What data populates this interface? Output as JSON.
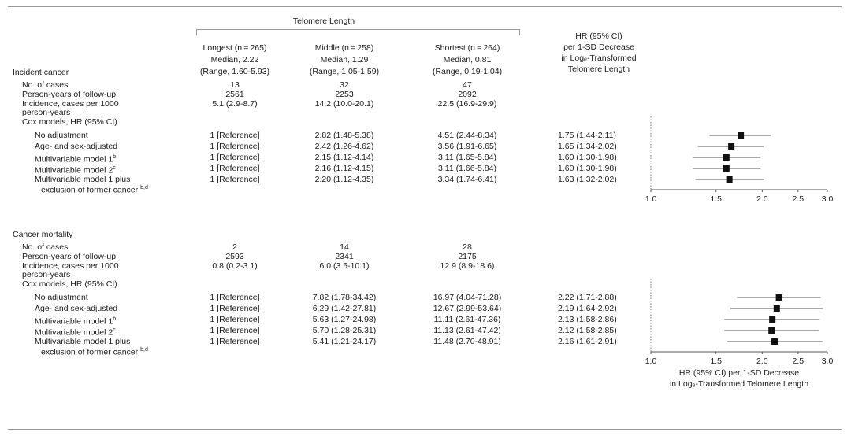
{
  "header": {
    "group_title": "Telomere Length",
    "columns": [
      {
        "title": "Longest (n = 265)",
        "median": "Median, 2.22",
        "range": "(Range, 1.60-5.93)"
      },
      {
        "title": "Middle (n = 258)",
        "median": "Median, 1.29",
        "range": "(Range, 1.05-1.59)"
      },
      {
        "title": "Shortest (n = 264)",
        "median": "Median, 0.81",
        "range": "(Range, 0.19-1.04)"
      }
    ],
    "hr_title_lines": [
      "HR (95% CI)",
      "per 1-SD Decrease",
      "in Logₑ-Transformed",
      "Telomere Length"
    ]
  },
  "sections": [
    {
      "title": "Incident cancer",
      "rows": [
        {
          "label": "No. of cases",
          "vals": [
            "13",
            "32",
            "47"
          ]
        },
        {
          "label": "Person-years of follow-up",
          "vals": [
            "2561",
            "2253",
            "2092"
          ]
        },
        {
          "label": "Incidence, cases per 1000",
          "label2": "person-years",
          "vals": [
            "5.1 (2.9-8.7)",
            "14.2 (10.0-20.1)",
            "22.5 (16.9-29.9)"
          ]
        },
        {
          "label": "Cox models, HR (95% CI)",
          "vals": [
            "",
            "",
            ""
          ]
        }
      ],
      "models": [
        {
          "label": "No adjustment",
          "sup": "",
          "vals": [
            "1 [Reference]",
            "2.82 (1.48-5.38)",
            "4.51 (2.44-8.34)"
          ],
          "hr": "1.75 (1.44-2.11)"
        },
        {
          "label": "Age- and sex-adjusted",
          "sup": "",
          "vals": [
            "1 [Reference]",
            "2.42 (1.26-4.62)",
            "3.56 (1.91-6.65)"
          ],
          "hr": "1.65 (1.34-2.02)"
        },
        {
          "label": "Multivariable model 1",
          "sup": "b",
          "vals": [
            "1 [Reference]",
            "2.15 (1.12-4.14)",
            "3.11 (1.65-5.84)"
          ],
          "hr": "1.60 (1.30-1.98)"
        },
        {
          "label": "Multivariable model 2",
          "sup": "c",
          "vals": [
            "1 [Reference]",
            "2.16 (1.12-4.15)",
            "3.11 (1.66-5.84)"
          ],
          "hr": "1.60 (1.30-1.98)"
        },
        {
          "label": "Multivariable model 1 plus",
          "label2": "exclusion of former cancer",
          "sup": "b,d",
          "vals": [
            "1 [Reference]",
            "2.20 (1.12-4.35)",
            "3.34 (1.74-6.41)"
          ],
          "hr": "1.63 (1.32-2.02)"
        }
      ]
    },
    {
      "title": "Cancer mortality",
      "rows": [
        {
          "label": "No. of cases",
          "vals": [
            "2",
            "14",
            "28"
          ]
        },
        {
          "label": "Person-years of follow-up",
          "vals": [
            "2593",
            "2341",
            "2175"
          ]
        },
        {
          "label": "Incidence, cases per 1000",
          "label2": "person-years",
          "vals": [
            "0.8 (0.2-3.1)",
            "6.0 (3.5-10.1)",
            "12.9 (8.9-18.6)"
          ]
        },
        {
          "label": "Cox models, HR (95% CI)",
          "vals": [
            "",
            "",
            ""
          ]
        }
      ],
      "models": [
        {
          "label": "No adjustment",
          "sup": "",
          "vals": [
            "1 [Reference]",
            "7.82 (1.78-34.42)",
            "16.97 (4.04-71.28)"
          ],
          "hr": "2.22 (1.71-2.88)"
        },
        {
          "label": "Age- and sex-adjusted",
          "sup": "",
          "vals": [
            "1 [Reference]",
            "6.29 (1.42-27.81)",
            "12.67 (2.99-53.64)"
          ],
          "hr": "2.19 (1.64-2.92)"
        },
        {
          "label": "Multivariable model 1",
          "sup": "b",
          "vals": [
            "1 [Reference]",
            "5.63 (1.27-24.98)",
            "11.11 (2.61-47.36)"
          ],
          "hr": "2.13 (1.58-2.86)"
        },
        {
          "label": "Multivariable model 2",
          "sup": "c",
          "vals": [
            "1 [Reference]",
            "5.70 (1.28-25.31)",
            "11.13 (2.61-47.42)"
          ],
          "hr": "2.12 (1.58-2.85)"
        },
        {
          "label": "Multivariable model 1 plus",
          "label2": "exclusion of former cancer",
          "sup": "b,d",
          "vals": [
            "1 [Reference]",
            "5.41 (1.21-24.17)",
            "11.48 (2.70-48.91)"
          ],
          "hr": "2.16 (1.61-2.91)"
        }
      ]
    }
  ],
  "chart_data": [
    {
      "type": "scatter",
      "title": "",
      "xlabel": "",
      "xscale": "log",
      "xlim": [
        1.0,
        3.0
      ],
      "ticks": [
        "1.0",
        "1.5",
        "2.0",
        "2.5",
        "3.0"
      ],
      "reference_line_x": 1.0,
      "points": [
        {
          "est": 1.75,
          "lo": 1.44,
          "hi": 2.11
        },
        {
          "est": 1.65,
          "lo": 1.34,
          "hi": 2.02
        },
        {
          "est": 1.6,
          "lo": 1.3,
          "hi": 1.98
        },
        {
          "est": 1.6,
          "lo": 1.3,
          "hi": 1.98
        },
        {
          "est": 1.63,
          "lo": 1.32,
          "hi": 2.02
        }
      ]
    },
    {
      "type": "scatter",
      "title": "",
      "xlabel": "HR (95% CI) per 1-SD Decrease|in Logₑ-Transformed Telomere Length",
      "xscale": "log",
      "xlim": [
        1.0,
        3.0
      ],
      "ticks": [
        "1.0",
        "1.5",
        "2.0",
        "2.5",
        "3.0"
      ],
      "reference_line_x": 1.0,
      "points": [
        {
          "est": 2.22,
          "lo": 1.71,
          "hi": 2.88
        },
        {
          "est": 2.19,
          "lo": 1.64,
          "hi": 2.92
        },
        {
          "est": 2.13,
          "lo": 1.58,
          "hi": 2.86
        },
        {
          "est": 2.12,
          "lo": 1.58,
          "hi": 2.85
        },
        {
          "est": 2.16,
          "lo": 1.61,
          "hi": 2.91
        }
      ]
    }
  ]
}
